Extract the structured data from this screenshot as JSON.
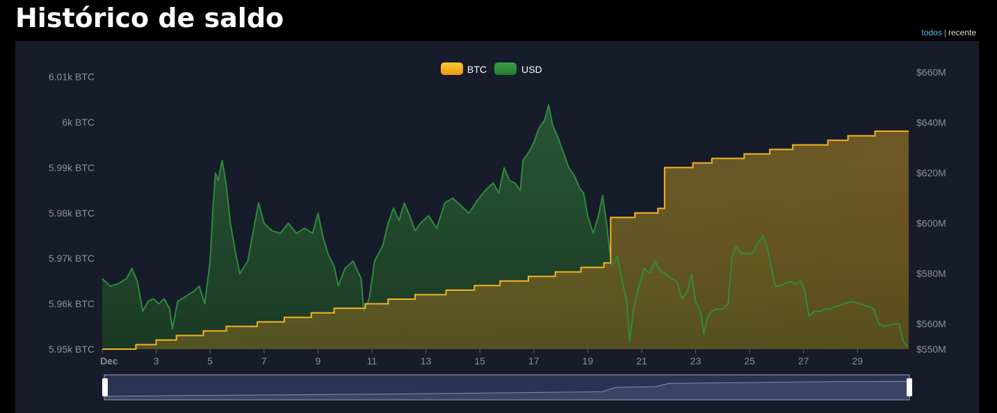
{
  "page": {
    "title": "Histórico de saldo",
    "links": {
      "all": "todos",
      "separator": "|",
      "recent": "recente"
    }
  },
  "colors": {
    "background": "#000000",
    "panel": "#171c2b",
    "btc": "#f5b324",
    "usd": "#2e8b3a",
    "navigator": "#3a4566"
  },
  "chart_data": {
    "type": "area",
    "title": "",
    "legend": {
      "position": "top-center",
      "items": [
        "BTC",
        "USD"
      ]
    },
    "x_axis": {
      "first_label": "Dec",
      "tick_days": [
        1,
        3,
        5,
        7,
        9,
        11,
        13,
        15,
        17,
        19,
        21,
        23,
        25,
        27,
        29
      ],
      "labels": [
        "Dec",
        "3",
        "5",
        "7",
        "9",
        "11",
        "13",
        "15",
        "17",
        "19",
        "21",
        "23",
        "25",
        "27",
        "29"
      ],
      "range_days": [
        1,
        30.9
      ]
    },
    "y_left": {
      "unit": "BTC",
      "range": [
        5950,
        6011
      ],
      "ticks": [
        5950,
        5960,
        5970,
        5980,
        5990,
        6000,
        6010
      ],
      "labels": [
        "5.95k BTC",
        "5.96k BTC",
        "5.97k BTC",
        "5.98k BTC",
        "5.99k BTC",
        "6k BTC",
        "6.01k BTC"
      ]
    },
    "y_right": {
      "unit": "USD",
      "range": [
        550,
        660
      ],
      "ticks": [
        550,
        560,
        580,
        600,
        620,
        640,
        660
      ],
      "labels": [
        "$550M",
        "$560M",
        "$580M",
        "$600M",
        "$620M",
        "$640M",
        "$660M"
      ]
    },
    "series": [
      {
        "name": "BTC",
        "axis": "left",
        "step": true,
        "points": [
          [
            1.0,
            5950.0
          ],
          [
            2.25,
            5951.0
          ],
          [
            3.0,
            5952.0
          ],
          [
            3.75,
            5953.0
          ],
          [
            4.75,
            5954.0
          ],
          [
            5.6,
            5955.0
          ],
          [
            6.75,
            5956.0
          ],
          [
            7.75,
            5957.0
          ],
          [
            8.75,
            5958.0
          ],
          [
            9.6,
            5959.0
          ],
          [
            10.75,
            5960.0
          ],
          [
            11.6,
            5961.0
          ],
          [
            12.6,
            5962.0
          ],
          [
            13.75,
            5963.0
          ],
          [
            14.8,
            5964.0
          ],
          [
            15.75,
            5965.0
          ],
          [
            16.8,
            5966.0
          ],
          [
            17.8,
            5967.0
          ],
          [
            18.75,
            5968.0
          ],
          [
            19.6,
            5969.0
          ],
          [
            19.85,
            5979.0
          ],
          [
            20.75,
            5980.0
          ],
          [
            21.6,
            5981.0
          ],
          [
            21.85,
            5990.0
          ],
          [
            22.9,
            5991.0
          ],
          [
            23.6,
            5992.0
          ],
          [
            24.8,
            5993.0
          ],
          [
            25.75,
            5994.0
          ],
          [
            26.6,
            5995.0
          ],
          [
            27.9,
            5996.0
          ],
          [
            28.65,
            5997.0
          ],
          [
            29.65,
            5998.0
          ],
          [
            30.9,
            5998.0
          ]
        ]
      },
      {
        "name": "USD",
        "axis": "right",
        "points": [
          [
            1.0,
            578
          ],
          [
            1.3,
            575
          ],
          [
            1.6,
            576
          ],
          [
            1.9,
            578
          ],
          [
            2.1,
            582
          ],
          [
            2.3,
            577
          ],
          [
            2.5,
            565
          ],
          [
            2.7,
            569
          ],
          [
            2.9,
            570
          ],
          [
            3.1,
            568
          ],
          [
            3.3,
            570
          ],
          [
            3.5,
            566
          ],
          [
            3.6,
            558
          ],
          [
            3.8,
            569
          ],
          [
            4.1,
            571
          ],
          [
            4.4,
            573
          ],
          [
            4.6,
            575
          ],
          [
            4.8,
            568
          ],
          [
            5.0,
            585
          ],
          [
            5.1,
            605
          ],
          [
            5.2,
            620
          ],
          [
            5.3,
            617
          ],
          [
            5.45,
            625
          ],
          [
            5.6,
            615
          ],
          [
            5.75,
            600
          ],
          [
            5.95,
            588
          ],
          [
            6.1,
            580
          ],
          [
            6.4,
            585
          ],
          [
            6.6,
            597
          ],
          [
            6.8,
            608
          ],
          [
            7.0,
            600
          ],
          [
            7.3,
            597
          ],
          [
            7.6,
            596
          ],
          [
            7.9,
            600
          ],
          [
            8.2,
            596
          ],
          [
            8.5,
            598
          ],
          [
            8.8,
            596
          ],
          [
            9.0,
            604
          ],
          [
            9.2,
            594
          ],
          [
            9.4,
            587
          ],
          [
            9.6,
            583
          ],
          [
            9.75,
            575
          ],
          [
            10.0,
            582
          ],
          [
            10.3,
            585
          ],
          [
            10.6,
            578
          ],
          [
            10.7,
            565
          ],
          [
            10.9,
            570
          ],
          [
            11.1,
            585
          ],
          [
            11.4,
            591
          ],
          [
            11.6,
            600
          ],
          [
            11.8,
            606
          ],
          [
            12.0,
            601
          ],
          [
            12.2,
            608
          ],
          [
            12.4,
            603
          ],
          [
            12.6,
            597
          ],
          [
            12.8,
            600
          ],
          [
            13.1,
            603
          ],
          [
            13.4,
            598
          ],
          [
            13.7,
            608
          ],
          [
            14.0,
            610
          ],
          [
            14.3,
            607
          ],
          [
            14.6,
            604
          ],
          [
            14.9,
            609
          ],
          [
            15.2,
            613
          ],
          [
            15.5,
            616
          ],
          [
            15.7,
            612
          ],
          [
            15.9,
            622
          ],
          [
            16.1,
            617
          ],
          [
            16.3,
            616
          ],
          [
            16.5,
            613
          ],
          [
            16.6,
            625
          ],
          [
            16.8,
            628
          ],
          [
            17.0,
            632
          ],
          [
            17.2,
            638
          ],
          [
            17.4,
            641
          ],
          [
            17.55,
            647
          ],
          [
            17.7,
            639
          ],
          [
            17.9,
            634
          ],
          [
            18.1,
            628
          ],
          [
            18.3,
            622
          ],
          [
            18.5,
            619
          ],
          [
            18.7,
            614
          ],
          [
            18.85,
            612
          ],
          [
            19.0,
            603
          ],
          [
            19.2,
            596
          ],
          [
            19.4,
            603
          ],
          [
            19.55,
            611
          ],
          [
            19.7,
            600
          ],
          [
            19.8,
            590
          ],
          [
            19.9,
            583
          ],
          [
            20.1,
            587
          ],
          [
            20.3,
            576
          ],
          [
            20.45,
            569
          ],
          [
            20.55,
            553
          ],
          [
            20.7,
            566
          ],
          [
            20.9,
            575
          ],
          [
            21.1,
            582
          ],
          [
            21.3,
            580
          ],
          [
            21.5,
            585
          ],
          [
            21.7,
            581
          ],
          [
            21.9,
            580
          ],
          [
            22.1,
            578
          ],
          [
            22.3,
            577
          ],
          [
            22.5,
            570
          ],
          [
            22.7,
            573
          ],
          [
            22.85,
            580
          ],
          [
            23.0,
            569
          ],
          [
            23.2,
            564
          ],
          [
            23.3,
            556
          ],
          [
            23.45,
            563
          ],
          [
            23.6,
            565
          ],
          [
            23.8,
            566
          ],
          [
            24.0,
            566
          ],
          [
            24.2,
            568
          ],
          [
            24.35,
            587
          ],
          [
            24.5,
            591
          ],
          [
            24.7,
            588
          ],
          [
            24.9,
            588
          ],
          [
            25.1,
            588
          ],
          [
            25.3,
            592
          ],
          [
            25.5,
            595
          ],
          [
            25.65,
            591
          ],
          [
            25.8,
            583
          ],
          [
            25.95,
            575
          ],
          [
            26.1,
            575
          ],
          [
            26.3,
            576
          ],
          [
            26.5,
            577
          ],
          [
            26.7,
            576
          ],
          [
            26.9,
            577
          ],
          [
            27.05,
            573
          ],
          [
            27.2,
            563
          ],
          [
            27.4,
            565
          ],
          [
            27.6,
            565
          ],
          [
            27.8,
            566
          ],
          [
            28.0,
            566
          ],
          [
            28.2,
            567
          ],
          [
            28.5,
            568
          ],
          [
            28.8,
            569
          ],
          [
            29.1,
            568
          ],
          [
            29.4,
            567
          ],
          [
            29.6,
            566
          ],
          [
            29.8,
            560
          ],
          [
            30.0,
            559
          ],
          [
            30.3,
            560
          ],
          [
            30.55,
            560
          ],
          [
            30.7,
            553
          ],
          [
            30.85,
            551
          ]
        ]
      }
    ],
    "navigator": {
      "points": [
        [
          1.0,
          0.0
        ],
        [
          4.0,
          0.05
        ],
        [
          8.0,
          0.1
        ],
        [
          12.0,
          0.15
        ],
        [
          16.0,
          0.22
        ],
        [
          19.5,
          0.28
        ],
        [
          20.0,
          0.55
        ],
        [
          21.5,
          0.6
        ],
        [
          22.0,
          0.8
        ],
        [
          25.0,
          0.85
        ],
        [
          28.0,
          0.9
        ],
        [
          30.9,
          0.92
        ]
      ]
    }
  }
}
